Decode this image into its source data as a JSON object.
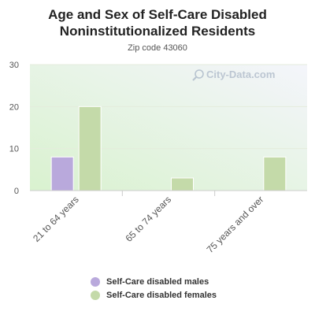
{
  "chart_data": {
    "type": "bar",
    "title": "Age and Sex of Self-Care Disabled Noninstitutionalized Residents",
    "subtitle": "Zip code 43060",
    "categories": [
      "21 to 64 years",
      "65 to 74 years",
      "75 years and over"
    ],
    "series": [
      {
        "name": "Self-Care disabled males",
        "values": [
          8,
          0,
          0
        ],
        "color": "#b9a9dc"
      },
      {
        "name": "Self-Care disabled females",
        "values": [
          20,
          3,
          8
        ],
        "color": "#c4daa9"
      }
    ],
    "y_ticks": [
      0,
      10,
      20,
      30
    ],
    "ylim": [
      0,
      30
    ],
    "grid": true,
    "legend_position": "bottom"
  },
  "watermark": {
    "text": "City-Data.com",
    "icon": "magnifier-icon"
  }
}
